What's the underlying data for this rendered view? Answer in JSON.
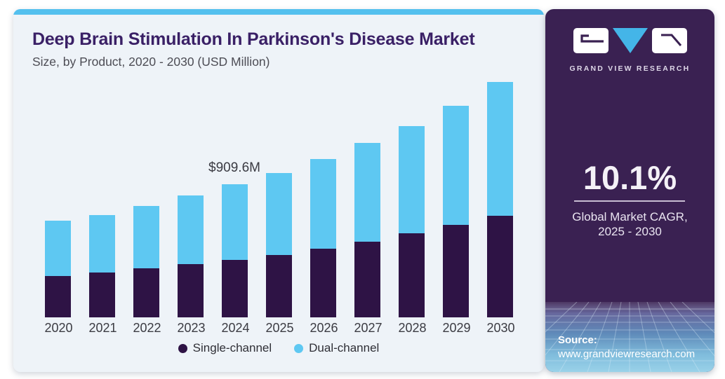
{
  "header": {
    "title": "Deep Brain Stimulation In Parkinson's Disease Market",
    "subtitle": "Size, by Product, 2020 - 2030 (USD Million)"
  },
  "chart_data": {
    "type": "bar",
    "stacked": true,
    "title": "Deep Brain Stimulation In Parkinson's Disease Market Size, by Product, 2020 - 2030 (USD Million)",
    "unit": "USD Million",
    "categories": [
      "2020",
      "2021",
      "2022",
      "2023",
      "2024",
      "2025",
      "2026",
      "2027",
      "2028",
      "2029",
      "2030"
    ],
    "series": [
      {
        "name": "Single-channel",
        "color": "#2e1345",
        "values": [
          282,
          307,
          334,
          363,
          395,
          427,
          470,
          517,
          577,
          634,
          694
        ]
      },
      {
        "name": "Dual-channel",
        "color": "#5ec8f2",
        "values": [
          380,
          392,
          427,
          470,
          515,
          562,
          615,
          676,
          732,
          814,
          916
        ]
      }
    ],
    "totals": [
      662,
      699,
      761,
      833,
      909.6,
      989,
      1085,
      1193,
      1309,
      1448,
      1610
    ],
    "annotation": {
      "category": "2024",
      "label": "$909.6M",
      "value": 909.6
    },
    "ylim": [
      0,
      1610
    ],
    "grid": false,
    "legend_position": "bottom"
  },
  "sidebar": {
    "logo": {
      "brand": "GRAND VIEW RESEARCH",
      "icon": "gvr-monogram"
    },
    "stat": {
      "value": "10.1%",
      "label_line1": "Global Market CAGR,",
      "label_line2": "2025 - 2030"
    },
    "source": {
      "label": "Source:",
      "url": "www.grandviewresearch.com"
    }
  },
  "colors": {
    "accent_blue": "#54c0ee",
    "bar_dark_purple": "#2e1345",
    "bar_light_blue": "#5ec8f2",
    "logo_triangle_blue": "#44b5e8",
    "panel_bg": "#3a2152",
    "card_bg": "#eef3f8",
    "title_text": "#3a2066"
  }
}
